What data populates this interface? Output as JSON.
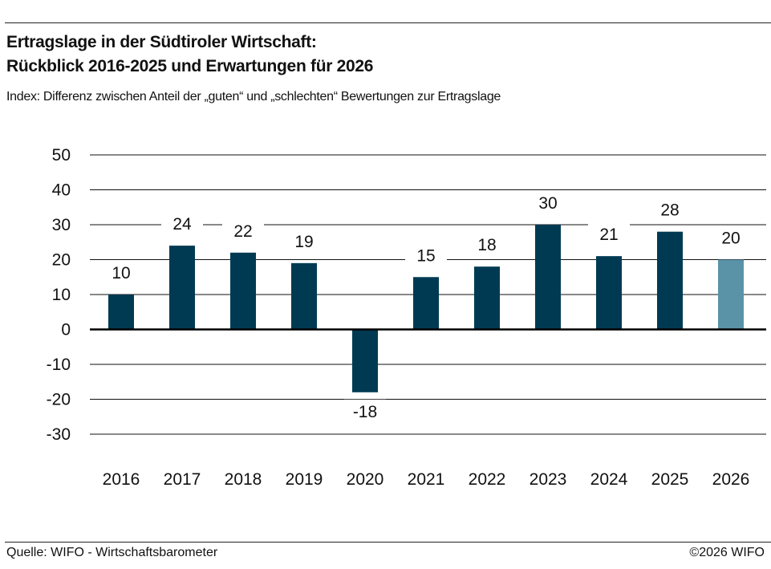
{
  "title_line1": "Ertragslage in der Südtiroler Wirtschaft:",
  "title_line2": "Rückblick 2016-2025 und Erwartungen für 2026",
  "subtitle": "Index: Differenz zwischen Anteil der „guten“ und „schlechten“ Bewertungen zur Ertragslage",
  "source": "Quelle: WIFO - Wirtschaftsbarometer",
  "copyright": "©2026 WIFO",
  "chart_data": {
    "type": "bar",
    "categories": [
      "2016",
      "2017",
      "2018",
      "2019",
      "2020",
      "2021",
      "2022",
      "2023",
      "2024",
      "2025",
      "2026"
    ],
    "values": [
      10,
      24,
      22,
      19,
      -18,
      15,
      18,
      30,
      21,
      28,
      20
    ],
    "data_labels": [
      "10",
      "24",
      "22",
      "19",
      "-18",
      "15",
      "18",
      "30",
      "21",
      "28",
      "20"
    ],
    "ylim": [
      -30,
      50
    ],
    "yticks": [
      50,
      40,
      30,
      20,
      10,
      0,
      -10,
      -20,
      -30
    ],
    "grid": true,
    "colors": {
      "actual": "#003a52",
      "expectation": "#5a93a8"
    },
    "expectation_categories": [
      "2026"
    ]
  }
}
